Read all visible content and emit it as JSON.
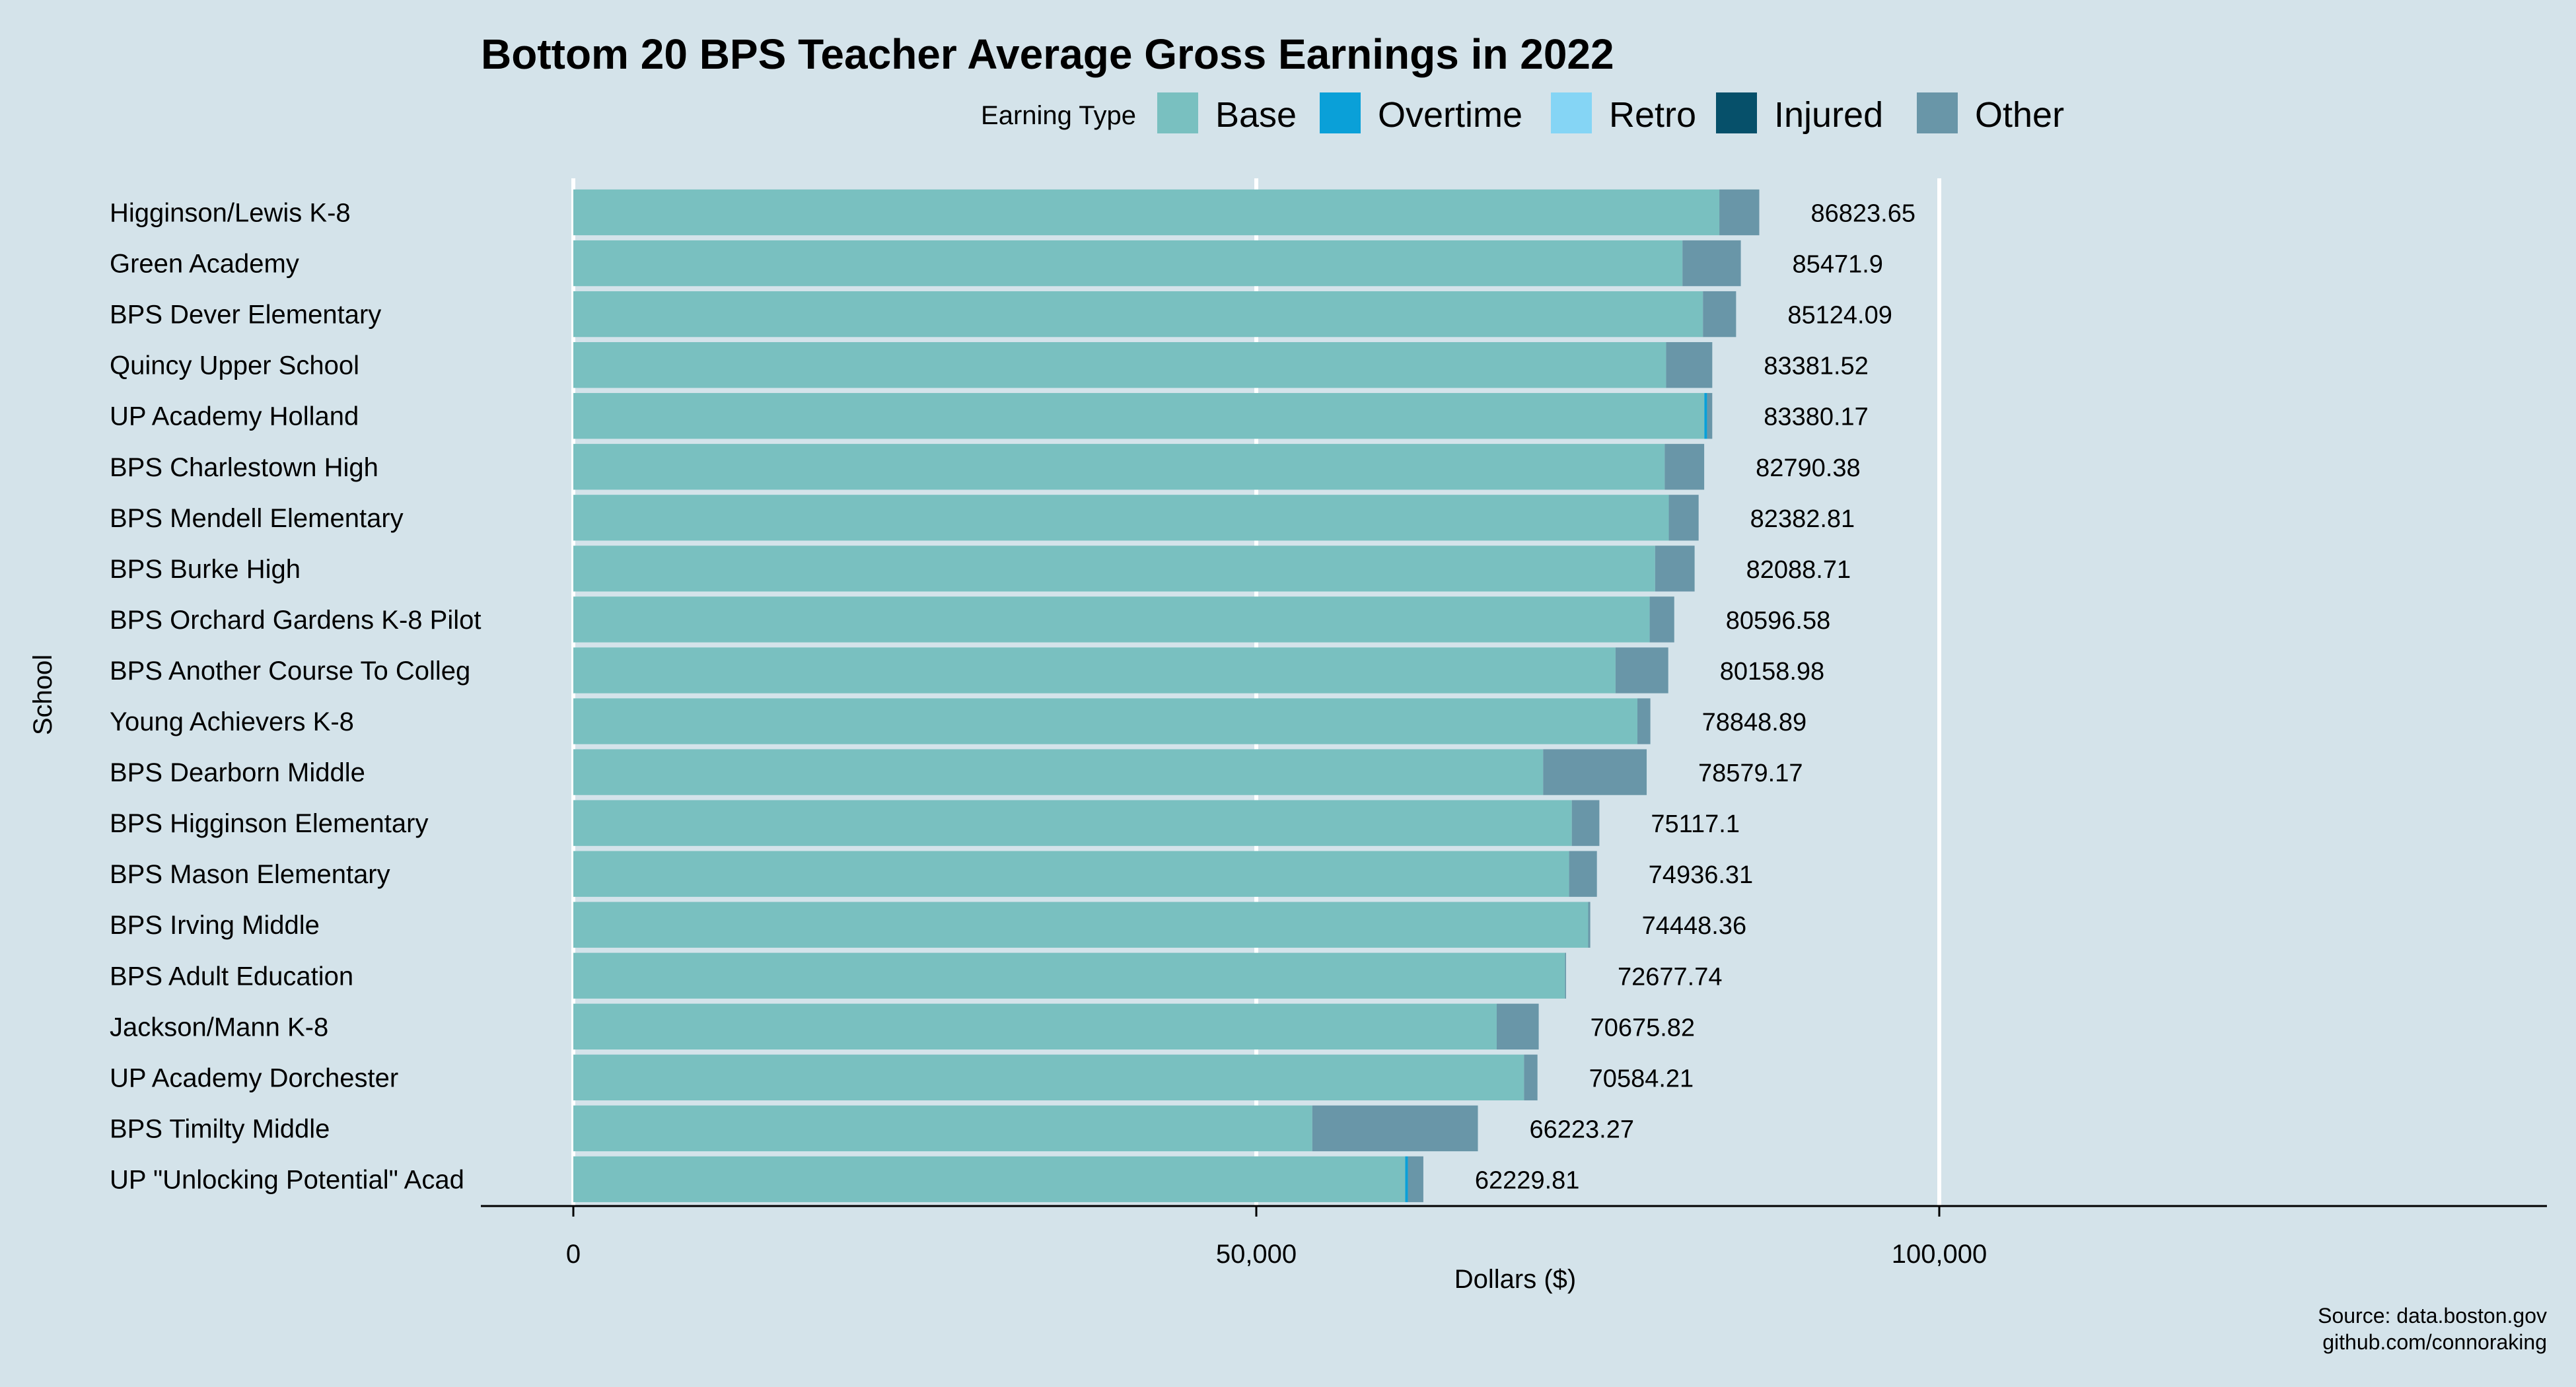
{
  "chart_data": {
    "type": "bar",
    "orientation": "horizontal",
    "stacked": true,
    "title": "Bottom 20 BPS Teacher Average Gross Earnings in 2022",
    "xlabel": "Dollars ($)",
    "ylabel": "School",
    "xlim": [
      0,
      140000
    ],
    "x_ticks": [
      0,
      50000,
      100000
    ],
    "x_tick_labels": [
      "0",
      "50,000",
      "100,000"
    ],
    "legend": {
      "title": "Earning Type",
      "placement": "top",
      "entries": [
        {
          "name": "Base",
          "color": "#79c0c0"
        },
        {
          "name": "Overtime",
          "color": "#0aa0d8"
        },
        {
          "name": "Retro",
          "color": "#85d5f5"
        },
        {
          "name": "Injured",
          "color": "#06506a"
        },
        {
          "name": "Other",
          "color": "#6996a8"
        }
      ]
    },
    "categories": [
      "Higginson/Lewis K-8",
      "Green Academy",
      "BPS Dever Elementary",
      "Quincy Upper School",
      "UP Academy Holland",
      "BPS Charlestown High",
      "BPS Mendell Elementary",
      "BPS Burke High",
      "BPS Orchard Gardens K-8 Pilot",
      "BPS Another Course To Colleg",
      "Young Achievers K-8",
      "BPS Dearborn Middle",
      "BPS Higginson Elementary",
      "BPS Mason Elementary",
      "BPS Irving Middle",
      "BPS Adult Education",
      "Jackson/Mann K-8",
      "UP Academy Dorchester",
      "BPS Timilty Middle",
      "UP \"Unlocking Potential\" Acad"
    ],
    "series": [
      {
        "name": "Base",
        "values": [
          83900,
          81200,
          82700,
          80000,
          82800,
          79900,
          80200,
          79200,
          78800,
          76300,
          77900,
          71000,
          73100,
          72900,
          74300,
          72600,
          67600,
          69600,
          54100,
          60900
        ]
      },
      {
        "name": "Overtime",
        "values": [
          0,
          0,
          0,
          0,
          200,
          0,
          0,
          0,
          0,
          0,
          0,
          0,
          0,
          0,
          0,
          0,
          0,
          0,
          0,
          200
        ]
      },
      {
        "name": "Retro",
        "values": [
          0,
          0,
          0,
          0,
          0,
          0,
          0,
          0,
          0,
          0,
          0,
          0,
          0,
          0,
          0,
          0,
          0,
          0,
          0,
          0
        ]
      },
      {
        "name": "Injured",
        "values": [
          0,
          0,
          0,
          0,
          0,
          0,
          0,
          0,
          0,
          0,
          0,
          0,
          0,
          0,
          0,
          0,
          0,
          0,
          0,
          0
        ]
      },
      {
        "name": "Other",
        "values": [
          2923.65,
          4271.9,
          2424.09,
          3381.52,
          380.17,
          2890.38,
          2182.81,
          2888.71,
          1796.58,
          3858.98,
          948.89,
          7579.17,
          2017.1,
          2036.31,
          148.36,
          77.74,
          3075.82,
          984.21,
          12123.27,
          1129.81
        ]
      }
    ],
    "totals": [
      "86823.65",
      "85471.9",
      "85124.09",
      "83381.52",
      "83380.17",
      "82790.38",
      "82382.81",
      "82088.71",
      "80596.58",
      "80158.98",
      "78848.89",
      "78579.17",
      "75117.1",
      "74936.31",
      "74448.36",
      "72677.74",
      "70675.82",
      "70584.21",
      "66223.27",
      "62229.81"
    ],
    "grid": {
      "major_x": true,
      "color": "#ffffff"
    }
  },
  "source_lines": [
    "Source: data.boston.gov",
    "github.com/connoraking"
  ]
}
